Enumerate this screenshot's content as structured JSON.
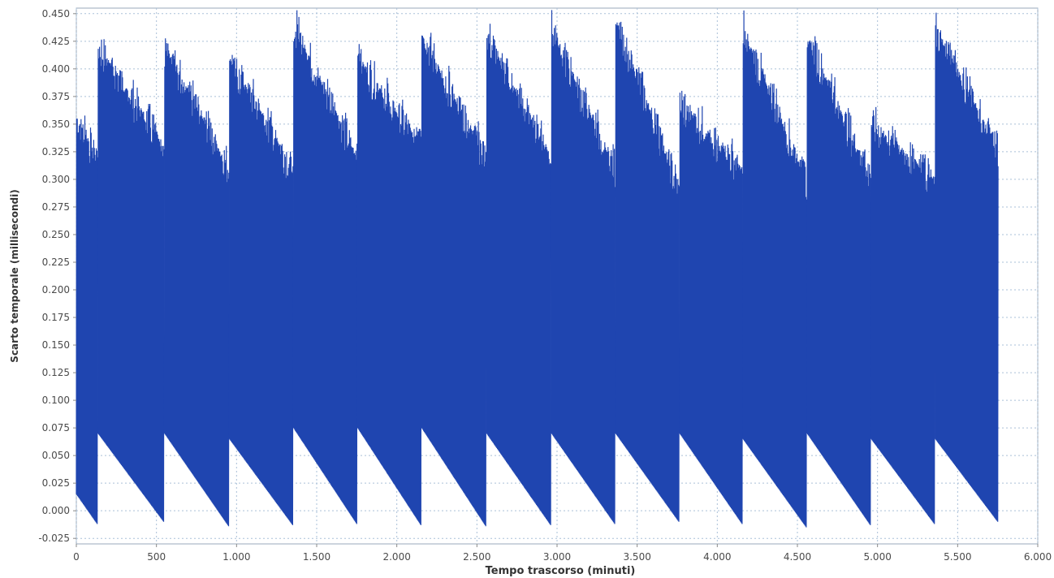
{
  "chart_data": {
    "type": "line",
    "title": "",
    "xlabel": "Tempo trascorso (minuti)",
    "ylabel": "Scarto temporale (millisecondi)",
    "xlim": [
      0,
      6000
    ],
    "ylim": [
      -0.03,
      0.455
    ],
    "grid": true,
    "colors": {
      "series": "#1f45b0",
      "grid": "#aac0d8",
      "frame": "#9aaabb"
    },
    "x_ticks": [
      {
        "value": 0,
        "label": "0"
      },
      {
        "value": 500,
        "label": "500"
      },
      {
        "value": 1000,
        "label": "1.000"
      },
      {
        "value": 1500,
        "label": "1.500"
      },
      {
        "value": 2000,
        "label": "2.000"
      },
      {
        "value": 2500,
        "label": "2.500"
      },
      {
        "value": 3000,
        "label": "3.000"
      },
      {
        "value": 3500,
        "label": "3.500"
      },
      {
        "value": 4000,
        "label": "4.000"
      },
      {
        "value": 4500,
        "label": "4.500"
      },
      {
        "value": 5000,
        "label": "5.000"
      },
      {
        "value": 5500,
        "label": "5.500"
      },
      {
        "value": 6000,
        "label": "6.000"
      }
    ],
    "y_ticks": [
      {
        "value": -0.025,
        "label": "-0.025"
      },
      {
        "value": 0.0,
        "label": "0.000"
      },
      {
        "value": 0.025,
        "label": "0.025"
      },
      {
        "value": 0.05,
        "label": "0.050"
      },
      {
        "value": 0.075,
        "label": "0.075"
      },
      {
        "value": 0.1,
        "label": "0.100"
      },
      {
        "value": 0.125,
        "label": "0.125"
      },
      {
        "value": 0.15,
        "label": "0.150"
      },
      {
        "value": 0.175,
        "label": "0.175"
      },
      {
        "value": 0.2,
        "label": "0.200"
      },
      {
        "value": 0.225,
        "label": "0.225"
      },
      {
        "value": 0.25,
        "label": "0.250"
      },
      {
        "value": 0.275,
        "label": "0.275"
      },
      {
        "value": 0.3,
        "label": "0.300"
      },
      {
        "value": 0.325,
        "label": "0.325"
      },
      {
        "value": 0.35,
        "label": "0.350"
      },
      {
        "value": 0.375,
        "label": "0.375"
      },
      {
        "value": 0.4,
        "label": "0.400"
      },
      {
        "value": 0.425,
        "label": "0.425"
      },
      {
        "value": 0.45,
        "label": "0.450"
      }
    ],
    "series": [
      {
        "data_x_range": [
          0,
          5750
        ],
        "segments": [
          {
            "x": [
              0,
              130
            ],
            "low": [
              0.015,
              -0.012
            ],
            "high": [
              0.355,
              0.32
            ]
          },
          {
            "x": [
              135,
              545
            ],
            "low": [
              0.07,
              -0.01
            ],
            "high": [
              0.42,
              0.33
            ]
          },
          {
            "x": [
              550,
              950
            ],
            "low": [
              0.07,
              -0.014
            ],
            "high": [
              0.42,
              0.31
            ]
          },
          {
            "x": [
              955,
              1350
            ],
            "low": [
              0.065,
              -0.013
            ],
            "high": [
              0.41,
              0.31
            ]
          },
          {
            "x": [
              1355,
              1750
            ],
            "low": [
              0.075,
              -0.012
            ],
            "high": [
              0.44,
              0.32
            ]
          },
          {
            "x": [
              1755,
              2150
            ],
            "low": [
              0.075,
              -0.013
            ],
            "high": [
              0.41,
              0.33
            ]
          },
          {
            "x": [
              2155,
              2555
            ],
            "low": [
              0.075,
              -0.014
            ],
            "high": [
              0.43,
              0.32
            ]
          },
          {
            "x": [
              2560,
              2960
            ],
            "low": [
              0.07,
              -0.013
            ],
            "high": [
              0.43,
              0.32
            ]
          },
          {
            "x": [
              2965,
              3360
            ],
            "low": [
              0.07,
              -0.012
            ],
            "high": [
              0.435,
              0.31
            ]
          },
          {
            "x": [
              3365,
              3760
            ],
            "low": [
              0.07,
              -0.01
            ],
            "high": [
              0.445,
              0.29
            ]
          },
          {
            "x": [
              3765,
              4155
            ],
            "low": [
              0.07,
              -0.012
            ],
            "high": [
              0.37,
              0.31
            ]
          },
          {
            "x": [
              4160,
              4555
            ],
            "low": [
              0.065,
              -0.015
            ],
            "high": [
              0.435,
              0.3
            ]
          },
          {
            "x": [
              4560,
              4955
            ],
            "low": [
              0.07,
              -0.013
            ],
            "high": [
              0.43,
              0.3
            ]
          },
          {
            "x": [
              4960,
              5355
            ],
            "low": [
              0.065,
              -0.012
            ],
            "high": [
              0.35,
              0.3
            ]
          },
          {
            "x": [
              5360,
              5750
            ],
            "low": [
              0.065,
              -0.01
            ],
            "high": [
              0.435,
              0.33
            ]
          }
        ]
      }
    ]
  }
}
